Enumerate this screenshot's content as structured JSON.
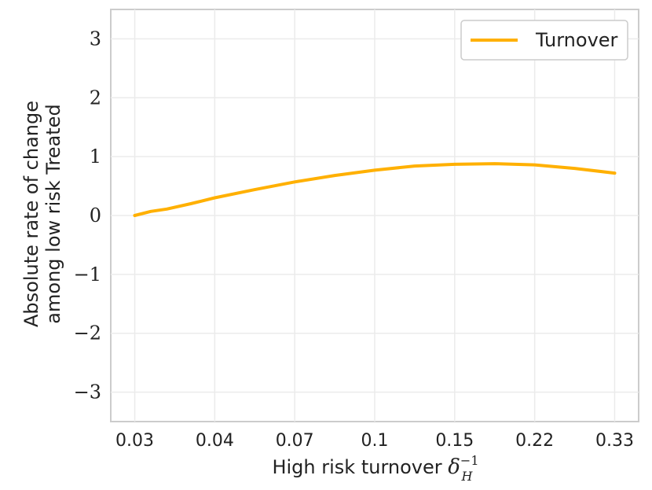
{
  "chart_data": {
    "type": "line",
    "title": "",
    "xlabel": "High risk turnover",
    "xlabel_math": "δ",
    "xlabel_sub": "H",
    "xlabel_sup": "−1",
    "ylabel_line1": "Absolute rate of change",
    "ylabel_line2": "among low risk Treated",
    "x_tick_labels": [
      "0.03",
      "0.04",
      "0.07",
      "0.1",
      "0.15",
      "0.22",
      "0.33"
    ],
    "y_ticks": [
      3,
      2,
      1,
      0,
      -1,
      -2,
      -3
    ],
    "y_tick_labels": [
      "3",
      "2",
      "1",
      "0",
      "−1",
      "−2",
      "−3"
    ],
    "ylim": [
      -3.5,
      3.5
    ],
    "x_index_range": [
      -0.3,
      6.3
    ],
    "grid": true,
    "legend_position": "top-right",
    "series": [
      {
        "name": "Turnover",
        "color": "#FFB000",
        "x_index": [
          0,
          0.2,
          0.4,
          0.7,
          1.0,
          1.5,
          2.0,
          2.5,
          3.0,
          3.5,
          4.0,
          4.5,
          5.0,
          5.5,
          6.0
        ],
        "values": [
          0.0,
          0.07,
          0.11,
          0.2,
          0.3,
          0.44,
          0.57,
          0.68,
          0.77,
          0.84,
          0.87,
          0.88,
          0.86,
          0.8,
          0.72
        ]
      }
    ]
  }
}
